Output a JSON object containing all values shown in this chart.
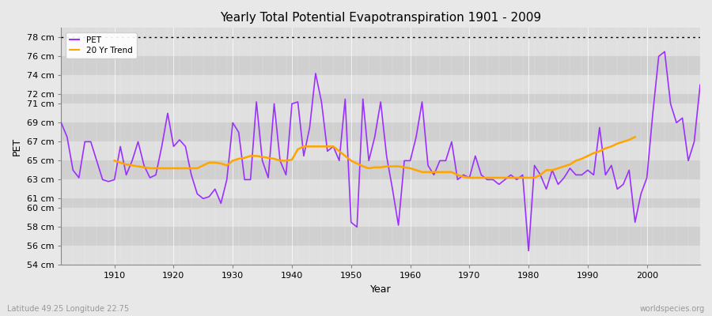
{
  "title": "Yearly Total Potential Evapotranspiration 1901 - 2009",
  "xlabel": "Year",
  "ylabel": "PET",
  "subtitle": "Latitude 49.25 Longitude 22.75",
  "watermark": "worldspecies.org",
  "pet_color": "#9B30FF",
  "trend_color": "#FFA500",
  "bg_color": "#E8E8E8",
  "plot_bg_color": "#DCDCDC",
  "band_light": "#E0E0E0",
  "band_dark": "#D0D0D0",
  "dotted_line_y": 78,
  "ylim": [
    54,
    79
  ],
  "xlim": [
    1901,
    2009
  ],
  "yticks": [
    54,
    56,
    58,
    60,
    61,
    63,
    65,
    67,
    69,
    71,
    72,
    74,
    76,
    78
  ],
  "xtick_positions": [
    1910,
    1920,
    1930,
    1940,
    1950,
    1960,
    1970,
    1980,
    1990,
    2000
  ],
  "years": [
    1901,
    1902,
    1903,
    1904,
    1905,
    1906,
    1907,
    1908,
    1909,
    1910,
    1911,
    1912,
    1913,
    1914,
    1915,
    1916,
    1917,
    1918,
    1919,
    1920,
    1921,
    1922,
    1923,
    1924,
    1925,
    1926,
    1927,
    1928,
    1929,
    1930,
    1931,
    1932,
    1933,
    1934,
    1935,
    1936,
    1937,
    1938,
    1939,
    1940,
    1941,
    1942,
    1943,
    1944,
    1945,
    1946,
    1947,
    1948,
    1949,
    1950,
    1951,
    1952,
    1953,
    1954,
    1955,
    1956,
    1957,
    1958,
    1959,
    1960,
    1961,
    1962,
    1963,
    1964,
    1965,
    1966,
    1967,
    1968,
    1969,
    1970,
    1971,
    1972,
    1973,
    1974,
    1975,
    1976,
    1977,
    1978,
    1979,
    1980,
    1981,
    1982,
    1983,
    1984,
    1985,
    1986,
    1987,
    1988,
    1989,
    1990,
    1991,
    1992,
    1993,
    1994,
    1995,
    1996,
    1997,
    1998,
    1999,
    2000,
    2001,
    2002,
    2003,
    2004,
    2005,
    2006,
    2007,
    2008,
    2009
  ],
  "pet_values": [
    69.0,
    67.5,
    64.0,
    63.2,
    67.0,
    67.0,
    65.0,
    63.0,
    62.8,
    63.0,
    66.5,
    63.5,
    65.0,
    67.0,
    64.5,
    63.2,
    63.5,
    66.5,
    70.0,
    66.5,
    67.2,
    66.5,
    63.5,
    61.5,
    61.0,
    61.2,
    62.0,
    60.5,
    63.0,
    69.0,
    68.0,
    63.0,
    63.0,
    71.2,
    65.0,
    63.2,
    71.0,
    65.0,
    63.5,
    71.0,
    71.2,
    65.5,
    68.5,
    74.2,
    71.2,
    66.0,
    66.5,
    65.0,
    71.5,
    58.5,
    58.0,
    71.5,
    65.0,
    67.5,
    71.2,
    65.5,
    62.0,
    58.2,
    65.0,
    65.0,
    67.5,
    71.2,
    64.5,
    63.5,
    65.0,
    65.0,
    67.0,
    63.0,
    63.5,
    63.2,
    65.5,
    63.5,
    63.0,
    63.0,
    62.5,
    63.0,
    63.5,
    63.0,
    63.5,
    55.5,
    64.5,
    63.5,
    62.0,
    64.0,
    62.5,
    63.2,
    64.2,
    63.5,
    63.5,
    64.0,
    63.5,
    68.5,
    63.5,
    64.5,
    62.0,
    62.5,
    64.0,
    58.5,
    61.5,
    63.2,
    70.0,
    76.0,
    76.5,
    71.0,
    69.0,
    69.5,
    65.0,
    67.0,
    73.0
  ],
  "trend_values": [
    null,
    null,
    null,
    null,
    null,
    null,
    null,
    null,
    null,
    65.0,
    64.8,
    64.6,
    64.5,
    64.4,
    64.3,
    64.2,
    64.2,
    64.2,
    64.2,
    64.2,
    64.2,
    64.2,
    64.2,
    64.2,
    64.5,
    64.8,
    64.8,
    64.7,
    64.5,
    65.0,
    65.2,
    65.3,
    65.5,
    65.5,
    65.4,
    65.3,
    65.2,
    65.0,
    65.0,
    65.1,
    66.2,
    66.5,
    66.5,
    66.5,
    66.5,
    66.5,
    66.5,
    66.0,
    65.5,
    65.0,
    64.7,
    64.4,
    64.2,
    64.3,
    64.3,
    64.4,
    64.4,
    64.4,
    64.3,
    64.2,
    64.0,
    63.8,
    63.8,
    63.8,
    63.8,
    63.8,
    63.8,
    63.5,
    63.3,
    63.2,
    63.2,
    63.2,
    63.2,
    63.2,
    63.2,
    63.2,
    63.2,
    63.2,
    63.2,
    63.2,
    63.2,
    63.5,
    64.0,
    64.0,
    64.2,
    64.4,
    64.6,
    65.0,
    65.2,
    65.5,
    65.8,
    66.0,
    66.3,
    66.5,
    66.8,
    67.0,
    67.2,
    67.5,
    null,
    null,
    null,
    null,
    null,
    null,
    null,
    null,
    null,
    null
  ]
}
